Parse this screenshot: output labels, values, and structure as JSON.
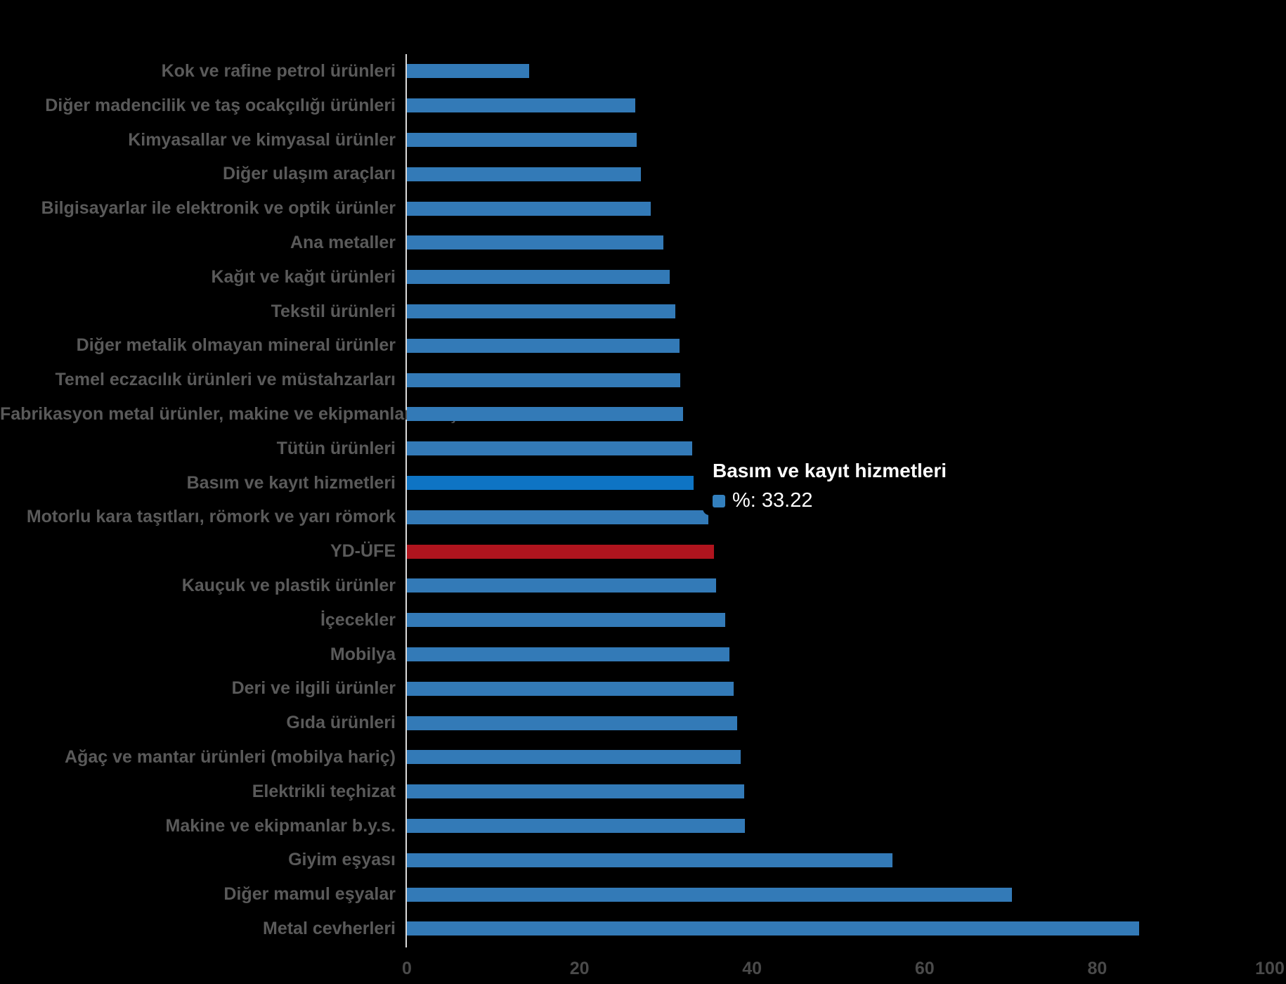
{
  "chart_data": {
    "type": "bar",
    "orientation": "horizontal",
    "title": "",
    "xlabel": "",
    "ylabel": "",
    "xlim": [
      0,
      100
    ],
    "x_ticks": [
      0,
      20,
      40,
      60,
      80,
      100
    ],
    "grid": false,
    "legend_position": "none",
    "series_name": "%",
    "categories": [
      "Kok ve rafine petrol ürünleri",
      "Diğer madencilik ve taş ocakçılığı ürünleri",
      "Kimyasallar ve kimyasal ürünler",
      "Diğer ulaşım araçları",
      "Bilgisayarlar ile elektronik ve optik ürünler",
      "Ana metaller",
      "Kağıt ve kağıt ürünleri",
      "Tekstil ürünleri",
      "Diğer metalik olmayan mineral ürünler",
      "Temel eczacılık ürünleri ve müstahzarları",
      "Fabrikasyon metal ürünler, makine ve ekipmanlar hariç",
      "Tütün ürünleri",
      "Basım ve kayıt hizmetleri",
      "Motorlu kara taşıtları, römork ve yarı römork",
      "YD-ÜFE",
      "Kauçuk ve plastik ürünler",
      "İçecekler",
      "Mobilya",
      "Deri ve ilgili ürünler",
      "Gıda ürünleri",
      "Ağaç ve mantar ürünleri (mobilya hariç)",
      "Elektrikli teçhizat",
      "Makine ve ekipmanlar b.y.s.",
      "Giyim eşyası",
      "Diğer mamul eşyalar",
      "Metal cevherleri"
    ],
    "values": [
      14.17,
      26.47,
      26.63,
      27.12,
      28.26,
      29.72,
      30.46,
      31.11,
      31.6,
      31.68,
      32.0,
      33.06,
      33.22,
      34.93,
      35.59,
      35.83,
      36.89,
      37.38,
      37.87,
      38.27,
      38.68,
      39.09,
      39.17,
      56.27,
      70.11,
      84.85
    ],
    "highlight_index": 12,
    "special_index": 14,
    "colors": {
      "bar_normal": "#337AB7",
      "bar_highlight": "#0E74C4",
      "bar_special": "#B0141E",
      "tooltip_swatch": "#3380BE",
      "label_text": "#5a5a5a",
      "tick_text": "#4a4a4a",
      "axis_line": "#dcdcdc",
      "background": "#000000"
    }
  },
  "tooltip": {
    "title": "Basım ve kayıt hizmetleri",
    "label": "%: 33.22"
  }
}
